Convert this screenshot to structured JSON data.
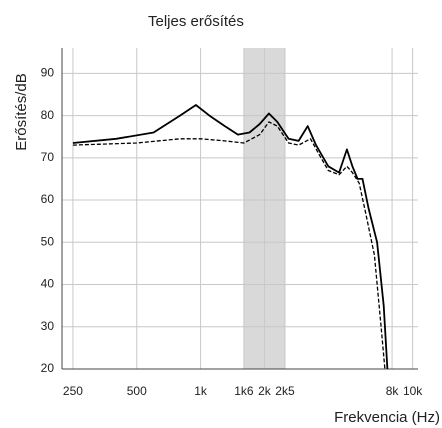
{
  "chart_data": {
    "type": "line",
    "title": "Teljes erősítés",
    "x_label": "Frekvencia (Hz)",
    "y_label": "Erősítés/dB",
    "xscale": "log",
    "xlim": [
      222,
      10600
    ],
    "ylim": [
      20,
      96
    ],
    "xticks": [
      250,
      500,
      {
        "value": 1000,
        "label": "1k"
      },
      {
        "value": 1600,
        "label": "1k6"
      },
      {
        "value": 2000,
        "label": "2k"
      },
      {
        "value": 2500,
        "label": "2k5"
      },
      {
        "value": 8000,
        "label": "8k"
      },
      {
        "value": 10000,
        "label": "10k"
      }
    ],
    "yticks": [
      20,
      30,
      40,
      50,
      60,
      70,
      80,
      90
    ],
    "grid": true,
    "shaded_range": [
      1600,
      2500
    ],
    "shaded_color": "#d9d9d9",
    "series": [
      {
        "style": "solid",
        "color": "#000000",
        "x": [
          250,
          400,
          600,
          800,
          950,
          1100,
          1300,
          1500,
          1700,
          1900,
          2100,
          2300,
          2600,
          2900,
          3200,
          3500,
          4000,
          4500,
          4900,
          5200,
          5500,
          5800,
          6200,
          6800,
          7300,
          7600
        ],
        "values": [
          73.5,
          74.5,
          76,
          80,
          82.5,
          80,
          77.5,
          75.5,
          76,
          78,
          80.5,
          78.5,
          74.5,
          74,
          77.5,
          73,
          68,
          66.5,
          72,
          68,
          65,
          65,
          58,
          50,
          35,
          20
        ]
      },
      {
        "style": "dashed",
        "color": "#000000",
        "x": [
          250,
          500,
          800,
          1000,
          1300,
          1600,
          1900,
          2100,
          2300,
          2600,
          2900,
          3300,
          3600,
          4000,
          4500,
          4900,
          5200,
          5600,
          6000,
          6600,
          7100,
          7400
        ],
        "values": [
          73,
          73.5,
          74.5,
          74.5,
          74,
          73.5,
          75.5,
          78.5,
          77.5,
          73.5,
          73,
          74.5,
          71,
          67,
          66,
          68,
          66.5,
          64,
          57,
          47,
          30,
          20
        ]
      }
    ]
  }
}
